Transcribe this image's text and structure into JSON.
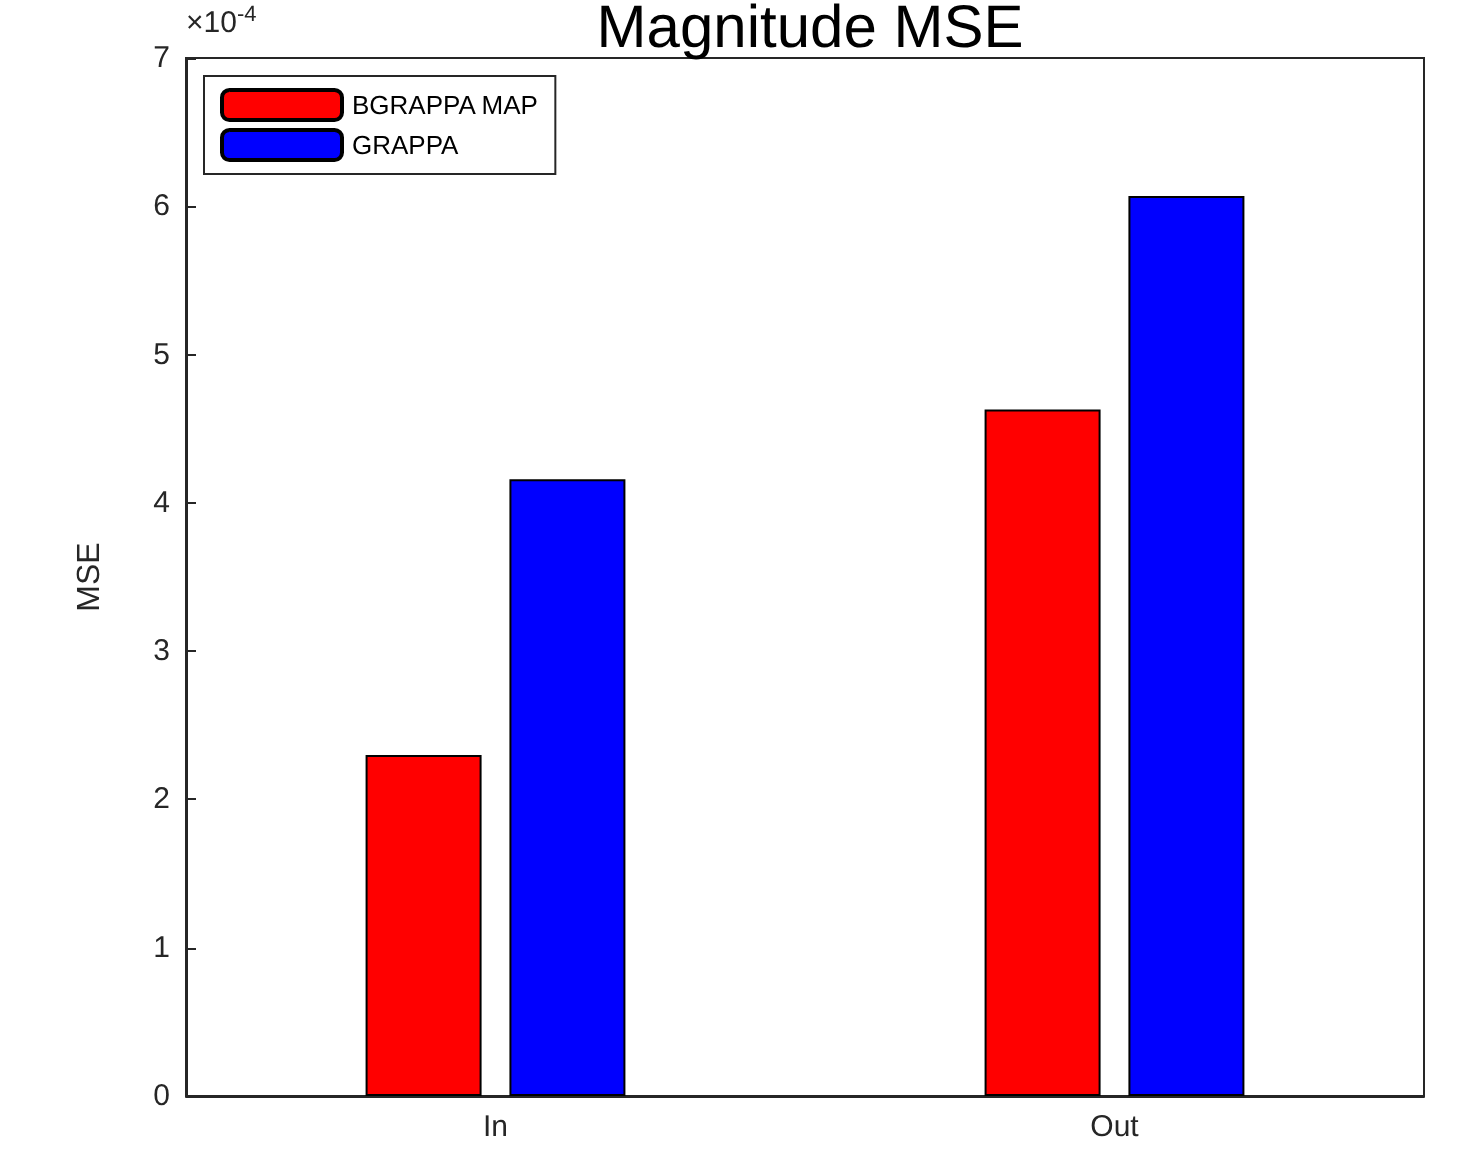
{
  "chart_data": {
    "type": "bar",
    "title": "Magnitude MSE",
    "ylabel": "MSE",
    "annotations": [
      "×10$^{-4}$"
    ],
    "categories": [
      "In",
      "Out"
    ],
    "series": [
      {
        "name": "BGRAPPA MAP",
        "color": "#ff0000",
        "values": [
          2.3,
          4.63
        ]
      },
      {
        "name": "GRAPPA",
        "color": "#0000ff",
        "values": [
          4.16,
          6.07
        ]
      }
    ],
    "ylim": [
      0,
      7
    ],
    "yticks": [
      0,
      1,
      2,
      3,
      4,
      5,
      6,
      7
    ],
    "grid": false,
    "legend": "top left"
  }
}
